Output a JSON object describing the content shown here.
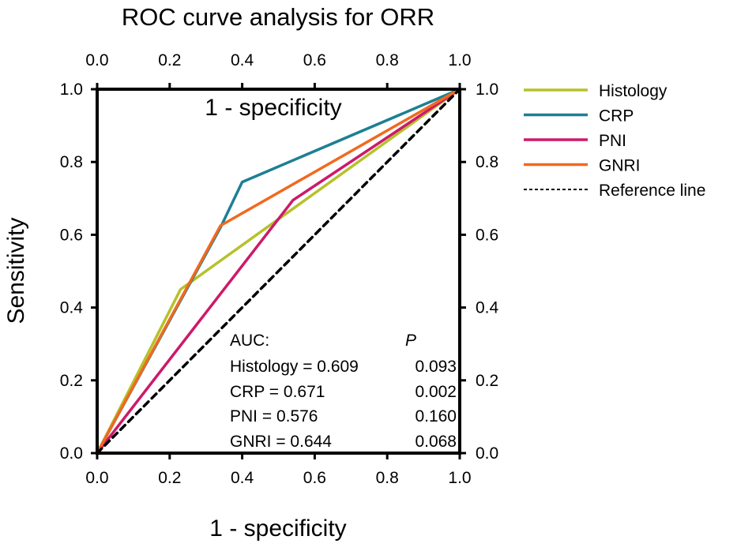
{
  "chart_data": {
    "type": "line",
    "title": "ROC curve analysis for ORR",
    "xlabel": "1 - specificity",
    "xlabel_top_inner": "1 - specificity",
    "ylabel": "Sensitivity",
    "xlim": [
      0,
      1
    ],
    "ylim": [
      0,
      1
    ],
    "ticks": [
      0.0,
      0.2,
      0.4,
      0.6,
      0.8,
      1.0
    ],
    "tick_labels": [
      "0.0",
      "0.2",
      "0.4",
      "0.6",
      "0.8",
      "1.0"
    ],
    "grid": false,
    "legend_position": "right",
    "series": [
      {
        "name": "Histology",
        "color": "#b5c22a",
        "dash": false,
        "points": [
          [
            0,
            0
          ],
          [
            0.23,
            0.45
          ],
          [
            1,
            1
          ]
        ]
      },
      {
        "name": "CRP",
        "color": "#1d7f94",
        "dash": false,
        "points": [
          [
            0,
            0
          ],
          [
            0.34,
            0.62
          ],
          [
            0.4,
            0.745
          ],
          [
            1,
            1
          ]
        ]
      },
      {
        "name": "PNI",
        "color": "#cc1a6a",
        "dash": false,
        "points": [
          [
            0,
            0
          ],
          [
            0.54,
            0.695
          ],
          [
            1,
            1
          ]
        ]
      },
      {
        "name": "GNRI",
        "color": "#f06a1e",
        "dash": false,
        "points": [
          [
            0,
            0
          ],
          [
            0.34,
            0.625
          ],
          [
            1,
            1
          ]
        ]
      },
      {
        "name": "Reference line",
        "color": "#000000",
        "dash": true,
        "points": [
          [
            0,
            0
          ],
          [
            1,
            1
          ]
        ]
      }
    ],
    "annotation": {
      "auc_header": "AUC:",
      "p_header": "P",
      "rows": [
        {
          "label": "Histology = 0.609",
          "p": "0.093"
        },
        {
          "label": "CRP = 0.671",
          "p": "0.002"
        },
        {
          "label": "PNI = 0.576",
          "p": "0.160"
        },
        {
          "label": "GNRI = 0.644",
          "p": "0.068"
        }
      ]
    }
  }
}
